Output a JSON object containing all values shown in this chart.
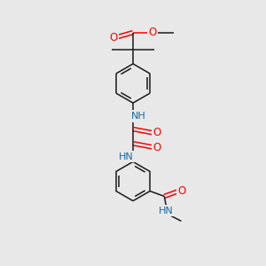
{
  "background_color": "#e8e8e8",
  "bond_color": "#1a1a1a",
  "oxygen_color": "#ff0000",
  "nitrogen_color": "#1a6aa0",
  "carbon_color": "#1a1a1a",
  "figsize": [
    3.0,
    3.0
  ],
  "dpi": 100,
  "xlim": [
    0,
    10
  ],
  "ylim": [
    0,
    10
  ]
}
